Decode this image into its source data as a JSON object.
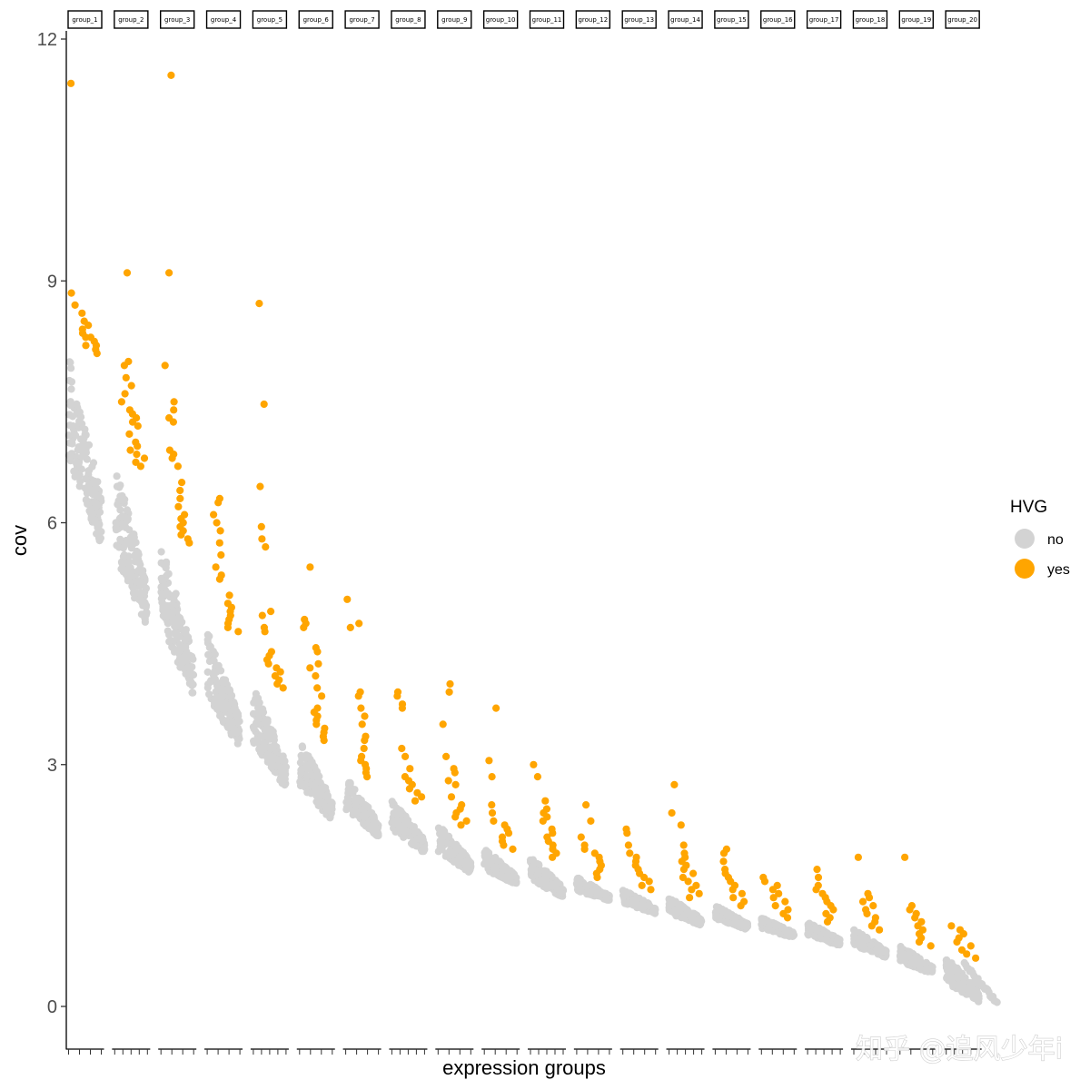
{
  "watermark": "知乎 @追风少年i",
  "chart_data": {
    "type": "scatter",
    "title": "",
    "xlabel": "expression groups",
    "ylabel": "cov",
    "ylim": [
      -0.5,
      12.2
    ],
    "yticks": [
      0,
      3,
      6,
      9,
      12
    ],
    "grid": false,
    "legend": {
      "title": "HVG",
      "position": "right",
      "entries": [
        {
          "label": "no",
          "color": "#d3d3d3"
        },
        {
          "label": "yes",
          "color": "#ffa500"
        }
      ]
    },
    "facets": [
      "group_1",
      "group_2",
      "group_3",
      "group_4",
      "group_5",
      "group_6",
      "group_7",
      "group_8",
      "group_9",
      "group_10",
      "group_11",
      "group_12",
      "group_13",
      "group_14",
      "group_15",
      "group_16",
      "group_17",
      "group_18",
      "group_19",
      "group_20"
    ],
    "groups": [
      {
        "name": "group_1",
        "cutoff": 8.1,
        "no_range": [
          5.7,
          8.1
        ],
        "yes": [
          11.45,
          8.85,
          8.7,
          8.6,
          8.5,
          8.45,
          8.4,
          8.35,
          8.3,
          8.3,
          8.25,
          8.2,
          8.2,
          8.15,
          8.1
        ]
      },
      {
        "name": "group_2",
        "cutoff": 6.7,
        "no_range": [
          4.7,
          6.7
        ],
        "yes": [
          9.1,
          8.0,
          7.95,
          7.8,
          7.7,
          7.6,
          7.5,
          7.4,
          7.35,
          7.3,
          7.25,
          7.2,
          7.1,
          7.0,
          6.95,
          6.9,
          6.85,
          6.8,
          6.75,
          6.7
        ]
      },
      {
        "name": "group_3",
        "cutoff": 5.75,
        "no_range": [
          3.85,
          5.75
        ],
        "yes": [
          11.55,
          9.1,
          7.95,
          7.5,
          7.4,
          7.3,
          7.25,
          6.9,
          6.85,
          6.8,
          6.7,
          6.5,
          6.4,
          6.3,
          6.2,
          6.1,
          6.05,
          6.0,
          5.95,
          5.9,
          5.85,
          5.8,
          5.75
        ]
      },
      {
        "name": "group_4",
        "cutoff": 4.65,
        "no_range": [
          3.2,
          4.65
        ],
        "yes": [
          6.3,
          6.25,
          6.1,
          6.0,
          5.9,
          5.75,
          5.6,
          5.45,
          5.35,
          5.3,
          5.1,
          5.0,
          4.95,
          4.9,
          4.85,
          4.8,
          4.75,
          4.7,
          4.65
        ]
      },
      {
        "name": "group_5",
        "cutoff": 3.95,
        "no_range": [
          2.7,
          3.95
        ],
        "yes": [
          8.72,
          7.47,
          6.45,
          5.95,
          5.8,
          5.7,
          4.9,
          4.85,
          4.7,
          4.65,
          4.4,
          4.35,
          4.3,
          4.25,
          4.2,
          4.15,
          4.1,
          4.05,
          4.0,
          3.95
        ]
      },
      {
        "name": "group_6",
        "cutoff": 3.3,
        "no_range": [
          2.3,
          3.3
        ],
        "yes": [
          5.45,
          4.8,
          4.75,
          4.7,
          4.45,
          4.4,
          4.25,
          4.2,
          4.1,
          3.95,
          3.85,
          3.7,
          3.65,
          3.6,
          3.55,
          3.5,
          3.45,
          3.4,
          3.35,
          3.3
        ]
      },
      {
        "name": "group_7",
        "cutoff": 2.85,
        "no_range": [
          2.1,
          2.85
        ],
        "yes": [
          5.05,
          4.75,
          4.7,
          3.9,
          3.85,
          3.7,
          3.6,
          3.5,
          3.35,
          3.3,
          3.2,
          3.1,
          3.05,
          3.0,
          2.95,
          2.9,
          2.85
        ]
      },
      {
        "name": "group_8",
        "cutoff": 2.55,
        "no_range": [
          1.9,
          2.55
        ],
        "yes": [
          3.9,
          3.85,
          3.75,
          3.7,
          3.2,
          3.1,
          2.95,
          2.85,
          2.8,
          2.75,
          2.7,
          2.65,
          2.6,
          2.55
        ]
      },
      {
        "name": "group_9",
        "cutoff": 2.25,
        "no_range": [
          1.65,
          2.25
        ],
        "yes": [
          4.0,
          3.9,
          3.5,
          3.1,
          2.95,
          2.9,
          2.8,
          2.75,
          2.6,
          2.5,
          2.45,
          2.4,
          2.35,
          2.3,
          2.25
        ]
      },
      {
        "name": "group_10",
        "cutoff": 1.95,
        "no_range": [
          1.5,
          1.95
        ],
        "yes": [
          3.7,
          3.05,
          2.85,
          2.5,
          2.4,
          2.3,
          2.25,
          2.2,
          2.15,
          2.1,
          2.05,
          2.0,
          1.95
        ]
      },
      {
        "name": "group_11",
        "cutoff": 1.85,
        "no_range": [
          1.35,
          1.85
        ],
        "yes": [
          3.0,
          2.85,
          2.55,
          2.45,
          2.4,
          2.35,
          2.3,
          2.2,
          2.15,
          2.1,
          2.05,
          2.0,
          1.95,
          1.9,
          1.85
        ]
      },
      {
        "name": "group_12",
        "cutoff": 1.6,
        "no_range": [
          1.3,
          1.6
        ],
        "yes": [
          2.5,
          2.3,
          2.1,
          2.0,
          1.95,
          1.9,
          1.85,
          1.8,
          1.75,
          1.7,
          1.65,
          1.6
        ]
      },
      {
        "name": "group_13",
        "cutoff": 1.45,
        "no_range": [
          1.15,
          1.45
        ],
        "yes": [
          2.2,
          2.15,
          2.0,
          1.9,
          1.85,
          1.8,
          1.75,
          1.7,
          1.65,
          1.6,
          1.55,
          1.5,
          1.45
        ]
      },
      {
        "name": "group_14",
        "cutoff": 1.35,
        "no_range": [
          1.0,
          1.35
        ],
        "yes": [
          2.75,
          2.4,
          2.25,
          2.0,
          1.9,
          1.85,
          1.8,
          1.75,
          1.7,
          1.65,
          1.6,
          1.55,
          1.5,
          1.45,
          1.4,
          1.35
        ]
      },
      {
        "name": "group_15",
        "cutoff": 1.25,
        "no_range": [
          0.95,
          1.25
        ],
        "yes": [
          1.95,
          1.9,
          1.8,
          1.7,
          1.65,
          1.6,
          1.55,
          1.5,
          1.45,
          1.4,
          1.35,
          1.3,
          1.25
        ]
      },
      {
        "name": "group_16",
        "cutoff": 1.1,
        "no_range": [
          0.85,
          1.1
        ],
        "yes": [
          1.6,
          1.55,
          1.5,
          1.45,
          1.4,
          1.35,
          1.3,
          1.25,
          1.2,
          1.15,
          1.1
        ]
      },
      {
        "name": "group_17",
        "cutoff": 1.05,
        "no_range": [
          0.75,
          1.05
        ],
        "yes": [
          1.7,
          1.6,
          1.5,
          1.45,
          1.4,
          1.35,
          1.3,
          1.25,
          1.2,
          1.15,
          1.1,
          1.05
        ]
      },
      {
        "name": "group_18",
        "cutoff": 0.95,
        "no_range": [
          0.6,
          0.95
        ],
        "yes": [
          1.85,
          1.4,
          1.35,
          1.3,
          1.25,
          1.2,
          1.15,
          1.1,
          1.05,
          1.0,
          0.95
        ]
      },
      {
        "name": "group_19",
        "cutoff": 0.75,
        "no_range": [
          0.4,
          0.75
        ],
        "yes": [
          1.85,
          1.25,
          1.2,
          1.15,
          1.1,
          1.05,
          1.0,
          0.95,
          0.9,
          0.85,
          0.8,
          0.75
        ]
      },
      {
        "name": "group_20",
        "cutoff": 0.6,
        "no_range": [
          0.05,
          0.6
        ],
        "yes": [
          1.0,
          0.95,
          0.9,
          0.85,
          0.8,
          0.75,
          0.7,
          0.65,
          0.6
        ]
      }
    ]
  }
}
